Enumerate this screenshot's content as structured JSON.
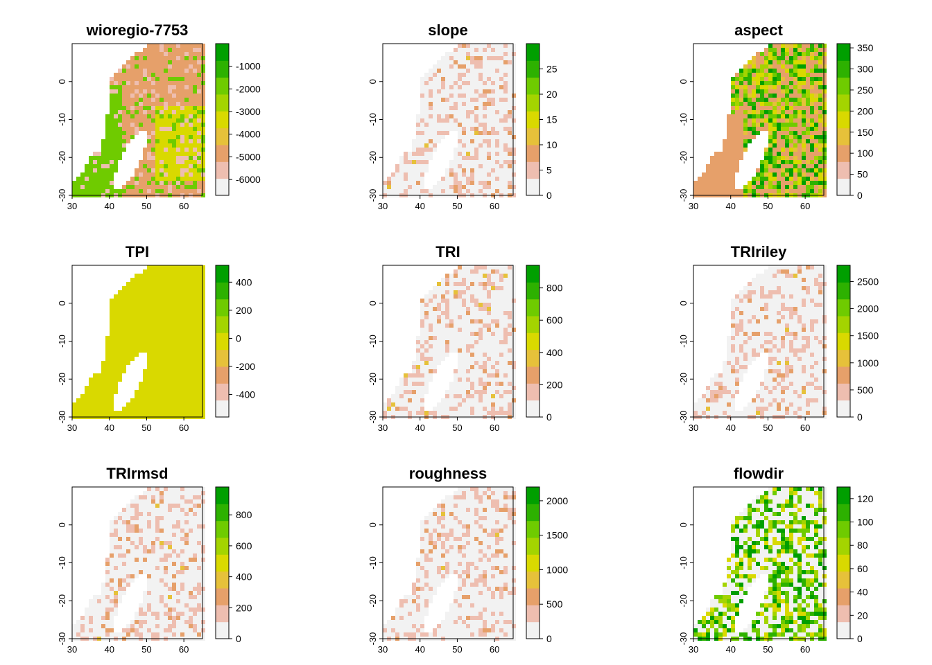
{
  "figure": {
    "grid": "3x3",
    "colors": {
      "ramp": [
        "#F2F2F2",
        "#EEBEB0",
        "#E6A06A",
        "#E6C13A",
        "#D9D900",
        "#A4D400",
        "#6FCB00",
        "#2DB100",
        "#009F00"
      ],
      "land": "#ffffff",
      "frame": "#000000"
    }
  },
  "chart_data": [
    {
      "type": "heatmap",
      "title": "wioregio-7753",
      "field": "bathymetry",
      "x_ticks": [
        "30",
        "40",
        "50",
        "60"
      ],
      "y_ticks": [
        "0",
        "-10",
        "-20",
        "-30"
      ],
      "xlim": [
        30,
        65
      ],
      "ylim": [
        -30,
        10
      ],
      "legend_range": [
        -6700,
        0
      ],
      "legend_ticks": [
        {
          "value": -1000,
          "label": "-1000"
        },
        {
          "value": -2000,
          "label": "-2000"
        },
        {
          "value": -3000,
          "label": "-3000"
        },
        {
          "value": -4000,
          "label": "-4000"
        },
        {
          "value": -5000,
          "label": "-5000"
        },
        {
          "value": -6000,
          "label": "-6000"
        }
      ]
    },
    {
      "type": "heatmap",
      "title": "slope",
      "field": "gradient",
      "x_ticks": [
        "30",
        "40",
        "50",
        "60"
      ],
      "y_ticks": [
        "0",
        "-10",
        "-20",
        "-30"
      ],
      "xlim": [
        30,
        65
      ],
      "ylim": [
        -30,
        10
      ],
      "legend_range": [
        0,
        30
      ],
      "legend_ticks": [
        {
          "value": 25,
          "label": "25"
        },
        {
          "value": 20,
          "label": "20"
        },
        {
          "value": 15,
          "label": "15"
        },
        {
          "value": 10,
          "label": "10"
        },
        {
          "value": 5,
          "label": "5"
        },
        {
          "value": 0,
          "label": "0"
        }
      ]
    },
    {
      "type": "heatmap",
      "title": "aspect",
      "field": "noisy",
      "x_ticks": [
        "30",
        "40",
        "50",
        "60"
      ],
      "y_ticks": [
        "0",
        "-10",
        "-20",
        "-30"
      ],
      "xlim": [
        30,
        65
      ],
      "ylim": [
        -30,
        10
      ],
      "legend_range": [
        0,
        360
      ],
      "legend_ticks": [
        {
          "value": 350,
          "label": "350"
        },
        {
          "value": 300,
          "label": "300"
        },
        {
          "value": 250,
          "label": "250"
        },
        {
          "value": 200,
          "label": "200"
        },
        {
          "value": 150,
          "label": "150"
        },
        {
          "value": 100,
          "label": "100"
        },
        {
          "value": 50,
          "label": "50"
        },
        {
          "value": 0,
          "label": "0"
        }
      ]
    },
    {
      "type": "heatmap",
      "title": "TPI",
      "field": "flat",
      "x_ticks": [
        "30",
        "40",
        "50",
        "60"
      ],
      "y_ticks": [
        "0",
        "-10",
        "-20",
        "-30"
      ],
      "xlim": [
        30,
        65
      ],
      "ylim": [
        -30,
        10
      ],
      "legend_range": [
        -560,
        520
      ],
      "legend_ticks": [
        {
          "value": 400,
          "label": "400"
        },
        {
          "value": 200,
          "label": "200"
        },
        {
          "value": 0,
          "label": "0"
        },
        {
          "value": -200,
          "label": "-200"
        },
        {
          "value": -400,
          "label": "-400"
        }
      ]
    },
    {
      "type": "heatmap",
      "title": "TRI",
      "field": "gradient",
      "x_ticks": [
        "30",
        "40",
        "50",
        "60"
      ],
      "y_ticks": [
        "0",
        "-10",
        "-20",
        "-30"
      ],
      "xlim": [
        30,
        65
      ],
      "ylim": [
        -30,
        10
      ],
      "legend_range": [
        0,
        940
      ],
      "legend_ticks": [
        {
          "value": 800,
          "label": "800"
        },
        {
          "value": 600,
          "label": "600"
        },
        {
          "value": 400,
          "label": "400"
        },
        {
          "value": 200,
          "label": "200"
        },
        {
          "value": 0,
          "label": "0"
        }
      ]
    },
    {
      "type": "heatmap",
      "title": "TRIriley",
      "field": "gradient",
      "x_ticks": [
        "30",
        "40",
        "50",
        "60"
      ],
      "y_ticks": [
        "0",
        "-10",
        "-20",
        "-30"
      ],
      "xlim": [
        30,
        65
      ],
      "ylim": [
        -30,
        10
      ],
      "legend_range": [
        0,
        2800
      ],
      "legend_ticks": [
        {
          "value": 2500,
          "label": "2500"
        },
        {
          "value": 2000,
          "label": "2000"
        },
        {
          "value": 1500,
          "label": "1500"
        },
        {
          "value": 1000,
          "label": "1000"
        },
        {
          "value": 500,
          "label": "500"
        },
        {
          "value": 0,
          "label": "0"
        }
      ]
    },
    {
      "type": "heatmap",
      "title": "TRIrmsd",
      "field": "gradient",
      "x_ticks": [
        "30",
        "40",
        "50",
        "60"
      ],
      "y_ticks": [
        "0",
        "-10",
        "-20",
        "-30"
      ],
      "xlim": [
        30,
        65
      ],
      "ylim": [
        -30,
        10
      ],
      "legend_range": [
        0,
        980
      ],
      "legend_ticks": [
        {
          "value": 800,
          "label": "800"
        },
        {
          "value": 600,
          "label": "600"
        },
        {
          "value": 400,
          "label": "400"
        },
        {
          "value": 200,
          "label": "200"
        },
        {
          "value": 0,
          "label": "0"
        }
      ]
    },
    {
      "type": "heatmap",
      "title": "roughness",
      "field": "gradient",
      "x_ticks": [
        "30",
        "40",
        "50",
        "60"
      ],
      "y_ticks": [
        "0",
        "-10",
        "-20",
        "-30"
      ],
      "xlim": [
        30,
        65
      ],
      "ylim": [
        -30,
        10
      ],
      "legend_range": [
        0,
        2200
      ],
      "legend_ticks": [
        {
          "value": 2000,
          "label": "2000"
        },
        {
          "value": 1500,
          "label": "1500"
        },
        {
          "value": 1000,
          "label": "1000"
        },
        {
          "value": 500,
          "label": "500"
        },
        {
          "value": 0,
          "label": "0"
        }
      ]
    },
    {
      "type": "heatmap",
      "title": "flowdir",
      "field": "sparse",
      "x_ticks": [
        "30",
        "40",
        "50",
        "60"
      ],
      "y_ticks": [
        "0",
        "-10",
        "-20",
        "-30"
      ],
      "xlim": [
        30,
        65
      ],
      "ylim": [
        -30,
        10
      ],
      "legend_range": [
        0,
        130
      ],
      "legend_ticks": [
        {
          "value": 120,
          "label": "120"
        },
        {
          "value": 100,
          "label": "100"
        },
        {
          "value": 80,
          "label": "80"
        },
        {
          "value": 60,
          "label": "60"
        },
        {
          "value": 40,
          "label": "40"
        },
        {
          "value": 20,
          "label": "20"
        },
        {
          "value": 0,
          "label": "0"
        }
      ]
    }
  ]
}
